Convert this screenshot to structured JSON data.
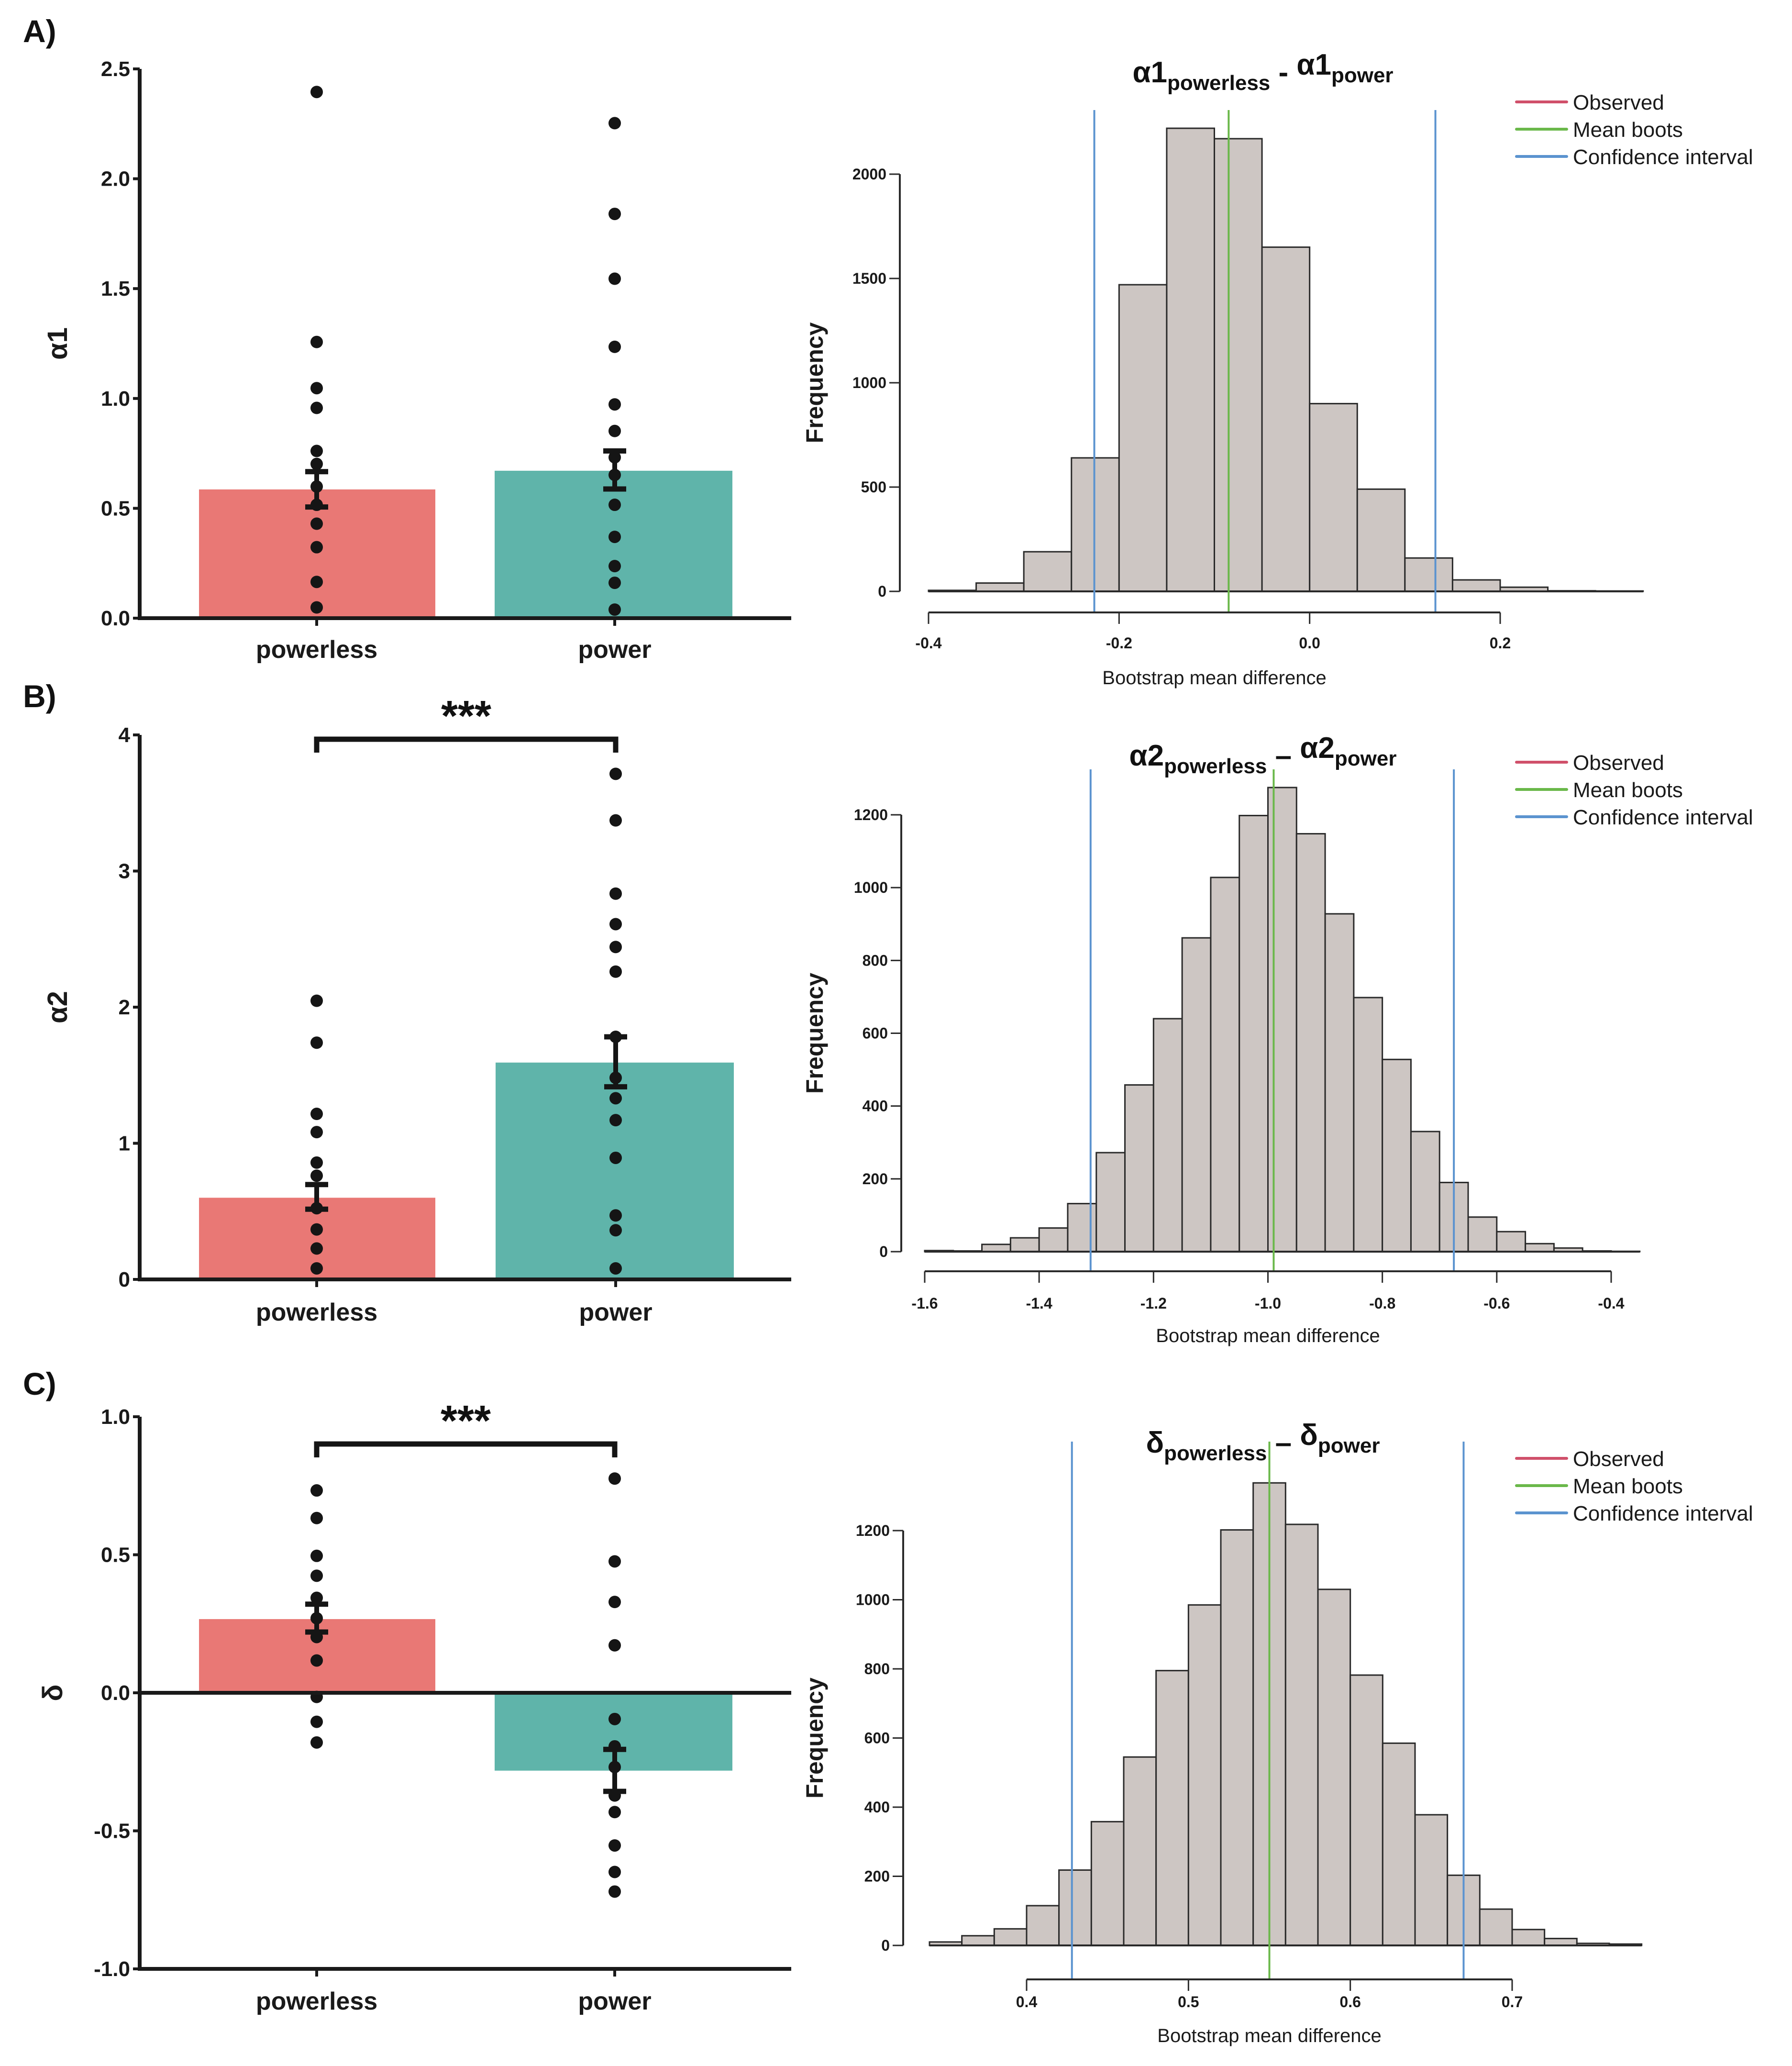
{
  "figure": {
    "panels": [
      "A)",
      "B)",
      "C)"
    ],
    "categories": [
      "powerless",
      "power"
    ],
    "colors": {
      "powerless": "#e97875",
      "power": "#5fb4aa",
      "dots": "#151515",
      "hist_fill": "#cdc6c3",
      "observed": "#d0506a",
      "mean_boots": "#6ab84a",
      "confidence_interval": "#5b93cf"
    },
    "legend": [
      {
        "label": "Observed",
        "color_key": "observed"
      },
      {
        "label": "Mean boots",
        "color_key": "mean_boots"
      },
      {
        "label": "Confidence interval",
        "color_key": "confidence_interval"
      }
    ]
  },
  "chart_data": [
    {
      "id": "A-bar",
      "type": "bar",
      "panel": "A)",
      "ylabel": "α1",
      "categories": [
        "powerless",
        "power"
      ],
      "ylim": [
        0,
        2.5
      ],
      "yticks": [
        "0.0",
        "0.5",
        "1.0",
        "1.5",
        "2.0",
        "2.5"
      ],
      "ytick_values": [
        0,
        0.5,
        1.0,
        1.5,
        2.0,
        2.5
      ],
      "means": [
        0.586,
        0.671
      ],
      "error_low": [
        0.506,
        0.588
      ],
      "error_high": [
        0.667,
        0.761
      ],
      "points": [
        [
          2.395,
          1.257,
          1.047,
          0.957,
          0.761,
          0.702,
          0.599,
          0.516,
          0.43,
          0.323,
          0.165,
          0.049
        ],
        [
          2.253,
          1.84,
          1.545,
          1.235,
          0.973,
          0.852,
          0.732,
          0.652,
          0.516,
          0.37,
          0.237,
          0.161,
          0.039
        ]
      ],
      "significance": ""
    },
    {
      "id": "A-hist",
      "type": "bar",
      "subtype": "histogram",
      "title_main": "α1",
      "title_sub1": "powerless",
      "title_sep": " - ",
      "title_main2": "α1",
      "title_sub2": "power",
      "xlabel": "Bootstrap mean difference",
      "ylabel": "Frequency",
      "bin_start": -0.4,
      "bin_width": 0.05,
      "counts": [
        5,
        40,
        190,
        640,
        1470,
        2220,
        2170,
        1650,
        900,
        490,
        160,
        55,
        20,
        3,
        2
      ],
      "xticks": [
        "-0.4",
        "-0.2",
        "0.0",
        "0.2"
      ],
      "xtick_values": [
        -0.4,
        -0.2,
        0.0,
        0.2
      ],
      "yticks": [
        "0",
        "500",
        "1000",
        "1500",
        "2000"
      ],
      "ytick_values": [
        0,
        500,
        1000,
        1500,
        2000
      ],
      "mean_boots": -0.085,
      "ci": [
        -0.226,
        0.132
      ],
      "legend_position": "top-right"
    },
    {
      "id": "B-bar",
      "type": "bar",
      "panel": "B)",
      "ylabel": "α2",
      "categories": [
        "powerless",
        "power"
      ],
      "ylim": [
        0,
        4
      ],
      "yticks": [
        "0",
        "1",
        "2",
        "3",
        "4"
      ],
      "ytick_values": [
        0,
        1,
        2,
        3,
        4
      ],
      "means": [
        0.6,
        1.593
      ],
      "error_low": [
        0.516,
        1.415
      ],
      "error_high": [
        0.697,
        1.782
      ],
      "points": [
        [
          2.047,
          1.739,
          1.216,
          1.082,
          0.858,
          0.762,
          0.523,
          0.367,
          0.227,
          0.081
        ],
        [
          3.714,
          3.372,
          2.834,
          2.61,
          2.442,
          2.261,
          1.782,
          1.481,
          1.331,
          1.17,
          0.893,
          0.47,
          0.361,
          0.081
        ]
      ],
      "significance": "***"
    },
    {
      "id": "B-hist",
      "type": "bar",
      "subtype": "histogram",
      "title_main": "α2",
      "title_sub1": "powerless",
      "title_sep": " – ",
      "title_main2": "α2",
      "title_sub2": "power",
      "xlabel": "Bootstrap mean difference",
      "ylabel": "Frequency",
      "bin_start": -1.6,
      "bin_width": 0.05,
      "counts": [
        3,
        2,
        20,
        38,
        65,
        132,
        272,
        458,
        640,
        862,
        1028,
        1198,
        1275,
        1148,
        928,
        698,
        528,
        330,
        190,
        95,
        55,
        22,
        10,
        2,
        1
      ],
      "xticks": [
        "-1.6",
        "-1.4",
        "-1.2",
        "-1.0",
        "-0.8",
        "-0.6",
        "-0.4"
      ],
      "xtick_values": [
        -1.6,
        -1.4,
        -1.2,
        -1.0,
        -0.8,
        -0.6,
        -0.4
      ],
      "yticks": [
        "0",
        "200",
        "400",
        "600",
        "800",
        "1000",
        "1200"
      ],
      "ytick_values": [
        0,
        200,
        400,
        600,
        800,
        1000,
        1200
      ],
      "mean_boots": -0.99,
      "ci": [
        -1.31,
        -0.675
      ],
      "legend_position": "top-right"
    },
    {
      "id": "C-bar",
      "type": "bar",
      "panel": "C)",
      "ylabel": "δ",
      "categories": [
        "powerless",
        "power"
      ],
      "ylim": [
        -1.0,
        1.0
      ],
      "yticks": [
        "-1.0",
        "-0.5",
        "0.0",
        "0.5",
        "1.0"
      ],
      "ytick_values": [
        -1.0,
        -0.5,
        0.0,
        0.5,
        1.0
      ],
      "means": [
        0.267,
        -0.282
      ],
      "error_low": [
        0.22,
        -0.357
      ],
      "error_high": [
        0.321,
        -0.205
      ],
      "points": [
        [
          0.733,
          0.633,
          0.496,
          0.424,
          0.344,
          0.27,
          0.202,
          0.117,
          -0.015,
          -0.105,
          -0.18
        ],
        [
          0.776,
          0.476,
          0.329,
          0.172,
          -0.095,
          -0.194,
          -0.269,
          -0.372,
          -0.432,
          -0.553,
          -0.649,
          -0.72
        ]
      ],
      "significance": "***"
    },
    {
      "id": "C-hist",
      "type": "bar",
      "subtype": "histogram",
      "title_main": "δ",
      "title_sub1": "powerless",
      "title_sep": " – ",
      "title_main2": "δ",
      "title_sub2": "power",
      "xlabel": "Bootstrap mean difference",
      "ylabel": "Frequency",
      "bin_start": 0.34,
      "bin_width": 0.02,
      "counts": [
        10,
        28,
        48,
        115,
        218,
        358,
        545,
        795,
        985,
        1202,
        1338,
        1218,
        1030,
        782,
        585,
        378,
        203,
        105,
        46,
        20,
        6,
        4
      ],
      "xticks": [
        "0.4",
        "0.5",
        "0.6",
        "0.7"
      ],
      "xtick_values": [
        0.4,
        0.5,
        0.6,
        0.7
      ],
      "yticks": [
        "0",
        "200",
        "400",
        "600",
        "800",
        "1000",
        "1200"
      ],
      "ytick_values": [
        0,
        200,
        400,
        600,
        800,
        1000,
        1200
      ],
      "mean_boots": 0.55,
      "ci": [
        0.428,
        0.67
      ],
      "legend_position": "top-right"
    }
  ]
}
